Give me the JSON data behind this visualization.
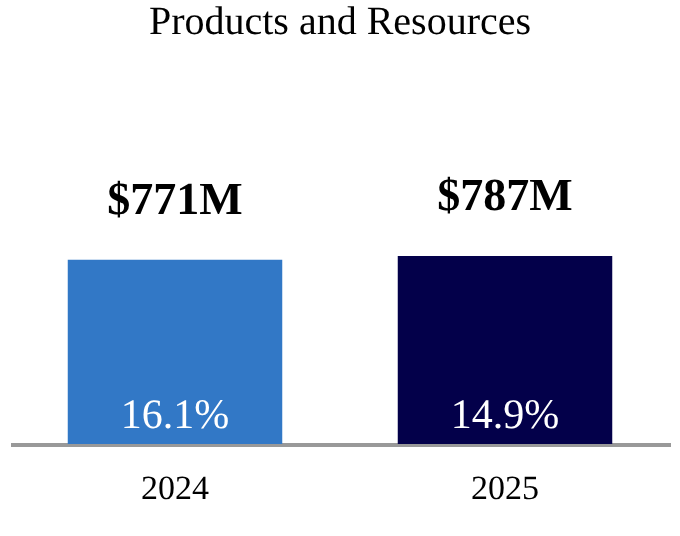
{
  "chart_data": {
    "type": "bar",
    "title": "Products and Resources",
    "categories": [
      "2024",
      "2025"
    ],
    "values": [
      771,
      787
    ],
    "colors": [
      "#3278c6",
      "#03004a"
    ],
    "value_labels": [
      "$771M",
      "$787M"
    ],
    "annotations": [
      "16.1%",
      "14.9%"
    ]
  }
}
